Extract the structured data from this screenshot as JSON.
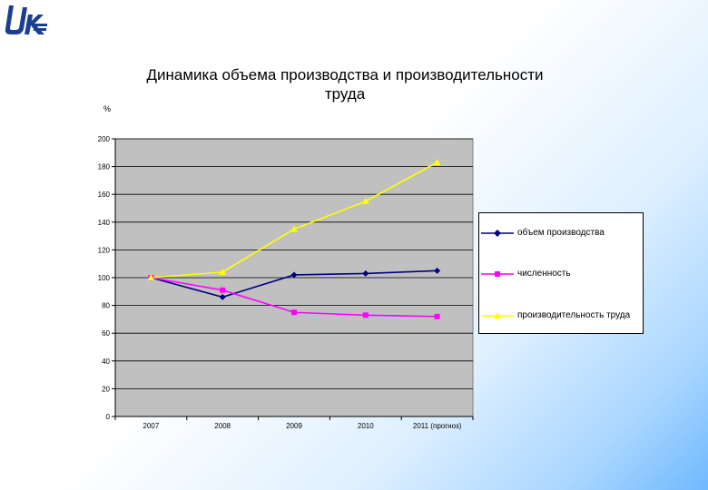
{
  "colors": {
    "plot_background": "#c0c0c0",
    "series_production": "#000080",
    "series_headcount": "#ff00ff",
    "series_productivity": "#ffff00",
    "logo": "#1b3f8f"
  },
  "logo": {
    "icon": "company-logo-icon"
  },
  "chart_data": {
    "type": "line",
    "title": "Динамика объема производства и производительности труда",
    "title_lines": [
      "Динамика объема производства и производительности",
      "труда"
    ],
    "ylabel": "%",
    "xlabel": "",
    "categories": [
      "2007",
      "2008",
      "2009",
      "2010",
      "2011 (прогноз)"
    ],
    "ylim": [
      0,
      200
    ],
    "yticks": [
      0,
      20,
      40,
      60,
      80,
      100,
      120,
      140,
      160,
      180,
      200
    ],
    "grid": true,
    "legend_position": "right",
    "series": [
      {
        "name": "объем производства",
        "marker": "diamond",
        "color": "#000080",
        "values": [
          100,
          86,
          102,
          103,
          105
        ]
      },
      {
        "name": "численность",
        "marker": "square",
        "color": "#ff00ff",
        "values": [
          100,
          91,
          75,
          73,
          72
        ]
      },
      {
        "name": "производительность труда",
        "marker": "triangle",
        "color": "#ffff00",
        "values": [
          100,
          104,
          135,
          155,
          183
        ]
      }
    ]
  }
}
